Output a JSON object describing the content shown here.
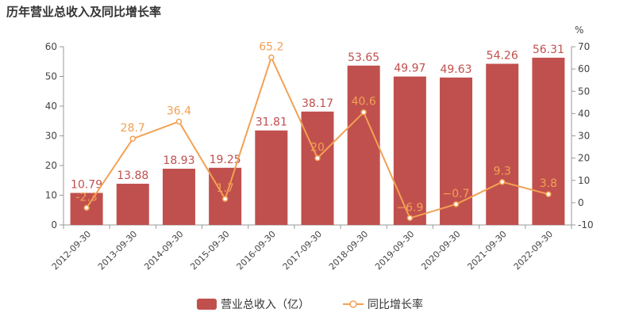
{
  "title": "历年营业总收入及同比增长率",
  "colors": {
    "bar": "#c0504d",
    "line": "#f2a154",
    "axis": "#999999",
    "tick_text": "#444444"
  },
  "chart_data": {
    "type": "bar",
    "title": "历年营业总收入及同比增长率",
    "categories": [
      "2012-09-30",
      "2013-09-30",
      "2014-09-30",
      "2015-09-30",
      "2016-09-30",
      "2017-09-30",
      "2018-09-30",
      "2019-09-30",
      "2020-09-30",
      "2021-09-30",
      "2022-09-30"
    ],
    "series": [
      {
        "name": "营业总收入（亿）",
        "type": "bar",
        "axis": "left",
        "values": [
          10.79,
          13.88,
          18.93,
          19.25,
          31.81,
          38.17,
          53.65,
          49.97,
          49.63,
          54.26,
          56.31
        ],
        "labels": [
          "10.79",
          "13.88",
          "18.93",
          "19.25",
          "31.81",
          "38.17",
          "53.65",
          "49.97",
          "49.63",
          "54.26",
          "56.31"
        ]
      },
      {
        "name": "同比增长率",
        "type": "line",
        "axis": "right",
        "values": [
          -2.3,
          28.7,
          36.4,
          1.7,
          65.2,
          20,
          40.6,
          -6.9,
          -0.7,
          9.3,
          3.8
        ],
        "labels": [
          "-2.3",
          "28.7",
          "36.4",
          "1.7",
          "65.2",
          "20",
          "40.6",
          "−6.9",
          "−0.7",
          "9.3",
          "3.8"
        ]
      }
    ],
    "y_left": {
      "range": [
        0,
        60
      ],
      "ticks": [
        0,
        10,
        20,
        30,
        40,
        50,
        60
      ]
    },
    "y_right": {
      "unit": "%",
      "range": [
        -10,
        70
      ],
      "ticks": [
        -10,
        0,
        10,
        20,
        30,
        40,
        50,
        60,
        70
      ]
    },
    "legend": {
      "position": "bottom-center",
      "items": [
        "营业总收入（亿）",
        "同比增长率"
      ]
    },
    "grid": false
  }
}
